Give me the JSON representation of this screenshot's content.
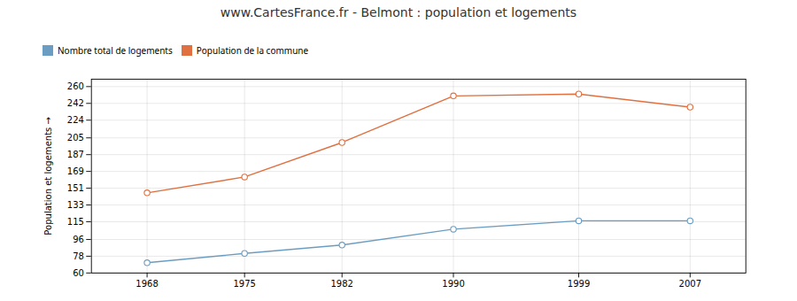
{
  "chart_data": {
    "type": "line",
    "title": "www.CartesFrance.fr - Belmont : population et logements",
    "ylabel": "Population et logements",
    "x": [
      1968,
      1975,
      1982,
      1990,
      1999,
      2007
    ],
    "series": [
      {
        "name": "Nombre total de logements",
        "color": "#6b9dc2",
        "values": [
          71,
          81,
          90,
          107,
          116,
          116
        ]
      },
      {
        "name": "Population de la commune",
        "color": "#e07040",
        "values": [
          146,
          163,
          200,
          250,
          252,
          238
        ]
      }
    ],
    "xlim": [
      1964,
      2011
    ],
    "xticks": [
      1968,
      1975,
      1982,
      1990,
      1999,
      2007
    ],
    "ylim": [
      60,
      268
    ],
    "yticks": [
      60,
      78,
      96,
      115,
      133,
      151,
      169,
      187,
      205,
      224,
      242,
      260
    ],
    "grid": true,
    "marker": "circle"
  }
}
